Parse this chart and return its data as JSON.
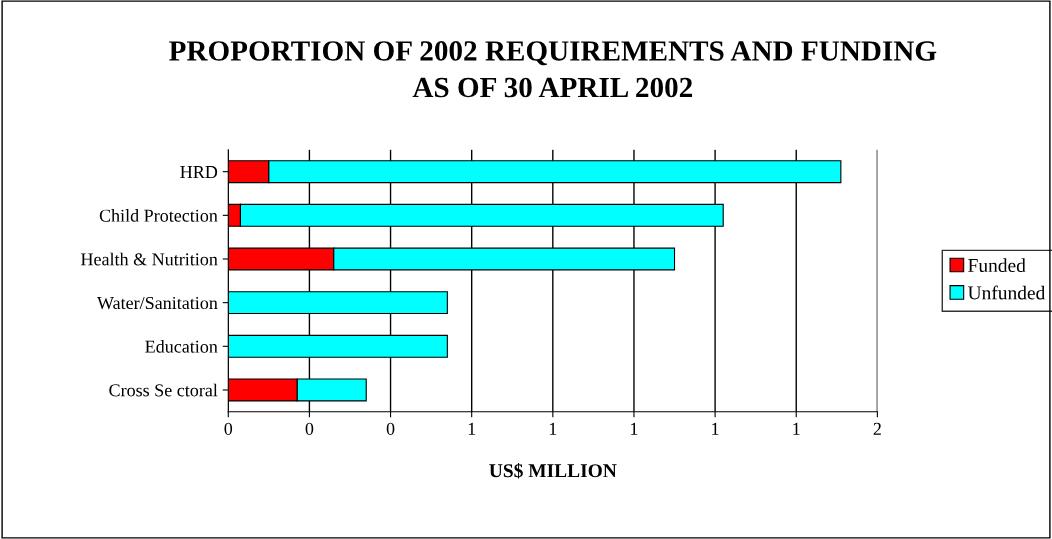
{
  "chart_data": {
    "type": "bar",
    "orientation": "horizontal",
    "stacked": true,
    "title": "PROPORTION OF 2002 REQUIREMENTS AND FUNDING\nAS OF 30 APRIL 2002",
    "xlabel": "US$ MILLION",
    "categories": [
      "HRD",
      "Child Protection",
      "Health & Nutrition",
      "Water/Sanitation",
      "Education",
      "Cross Se ctoral"
    ],
    "series": [
      {
        "name": "Funded",
        "color": "#ff0000",
        "values": [
          0.1,
          0.03,
          0.26,
          0,
          0,
          0.17
        ]
      },
      {
        "name": "Unfunded",
        "color": "#00ffff",
        "values": [
          1.41,
          1.19,
          0.84,
          0.54,
          0.54,
          0.17
        ]
      }
    ],
    "xlim": [
      0,
      1.6
    ],
    "xticks": [
      {
        "value": 0,
        "label": "0"
      },
      {
        "value": 0.2,
        "label": "0"
      },
      {
        "value": 0.4,
        "label": "0"
      },
      {
        "value": 0.6,
        "label": "1"
      },
      {
        "value": 0.8,
        "label": "1"
      },
      {
        "value": 1.0,
        "label": "1"
      },
      {
        "value": 1.2,
        "label": "1"
      },
      {
        "value": 1.4,
        "label": "1"
      },
      {
        "value": 1.6,
        "label": "2"
      }
    ],
    "grid": "x",
    "legend": "right"
  }
}
